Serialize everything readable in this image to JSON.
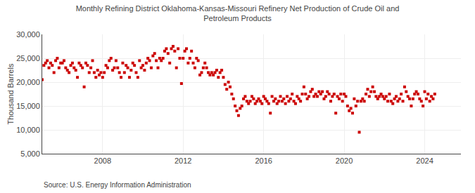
{
  "chart_data": {
    "type": "scatter",
    "title": "Monthly Refining District Oklahoma-Kansas-Missouri Refinery Net Production of Crude Oil and\nPetroleum Products",
    "ylabel": "Thousand Barrels",
    "annotations": [
      "Source: U.S. Energy Information Administration"
    ],
    "color": "#cc0000",
    "marker": "square",
    "grid": true,
    "xlim": [
      2005.0,
      2025.8
    ],
    "xticks": [
      2008,
      2012,
      2016,
      2020,
      2024
    ],
    "ylim": [
      5000,
      30000
    ],
    "yticks": [
      {
        "value": 5000,
        "label": "5,000"
      },
      {
        "value": 10000,
        "label": "10,000"
      },
      {
        "value": 15000,
        "label": "15,000"
      },
      {
        "value": 20000,
        "label": "20,000"
      },
      {
        "value": 25000,
        "label": "25,000"
      },
      {
        "value": 30000,
        "label": "30,000"
      }
    ],
    "x": [
      2005,
      2005.0833333333333,
      2005.1666666666667,
      2005.25,
      2005.3333333333333,
      2005.4166666666667,
      2005.5,
      2005.5833333333333,
      2005.6666666666667,
      2005.75,
      2005.8333333333333,
      2005.9166666666667,
      2006,
      2006.0833333333333,
      2006.1666666666667,
      2006.25,
      2006.3333333333333,
      2006.4166666666667,
      2006.5,
      2006.5833333333333,
      2006.6666666666667,
      2006.75,
      2006.8333333333333,
      2006.9166666666667,
      2007,
      2007.0833333333333,
      2007.1666666666667,
      2007.25,
      2007.3333333333333,
      2007.4166666666667,
      2007.5,
      2007.5833333333333,
      2007.6666666666667,
      2007.75,
      2007.8333333333333,
      2007.9166666666667,
      2008,
      2008.0833333333333,
      2008.1666666666667,
      2008.25,
      2008.3333333333333,
      2008.4166666666667,
      2008.5,
      2008.5833333333333,
      2008.6666666666667,
      2008.75,
      2008.8333333333333,
      2008.9166666666667,
      2009,
      2009.0833333333333,
      2009.1666666666667,
      2009.25,
      2009.3333333333333,
      2009.4166666666667,
      2009.5,
      2009.5833333333333,
      2009.6666666666667,
      2009.75,
      2009.8333333333333,
      2009.9166666666667,
      2010,
      2010.0833333333333,
      2010.1666666666667,
      2010.25,
      2010.3333333333333,
      2010.4166666666667,
      2010.5,
      2010.5833333333333,
      2010.6666666666667,
      2010.75,
      2010.8333333333333,
      2010.9166666666667,
      2011,
      2011.0833333333333,
      2011.1666666666667,
      2011.25,
      2011.3333333333333,
      2011.4166666666667,
      2011.5,
      2011.5833333333333,
      2011.6666666666667,
      2011.75,
      2011.8333333333333,
      2011.9166666666667,
      2012,
      2012.0833333333333,
      2012.1666666666667,
      2012.25,
      2012.3333333333333,
      2012.4166666666667,
      2012.5,
      2012.5833333333333,
      2012.6666666666667,
      2012.75,
      2012.8333333333333,
      2012.9166666666667,
      2013,
      2013.0833333333333,
      2013.1666666666667,
      2013.25,
      2013.3333333333333,
      2013.4166666666667,
      2013.5,
      2013.5833333333333,
      2013.6666666666667,
      2013.75,
      2013.8333333333333,
      2013.9166666666667,
      2014,
      2014.0833333333333,
      2014.1666666666667,
      2014.25,
      2014.3333333333333,
      2014.4166666666667,
      2014.5,
      2014.5833333333333,
      2014.6666666666667,
      2014.75,
      2014.8333333333333,
      2014.9166666666667,
      2015,
      2015.0833333333333,
      2015.1666666666667,
      2015.25,
      2015.3333333333333,
      2015.4166666666667,
      2015.5,
      2015.5833333333333,
      2015.6666666666667,
      2015.75,
      2015.8333333333333,
      2015.9166666666667,
      2016,
      2016.0833333333333,
      2016.1666666666667,
      2016.25,
      2016.3333333333333,
      2016.4166666666667,
      2016.5,
      2016.5833333333333,
      2016.6666666666667,
      2016.75,
      2016.8333333333333,
      2016.9166666666667,
      2017,
      2017.0833333333333,
      2017.1666666666667,
      2017.25,
      2017.3333333333333,
      2017.4166666666667,
      2017.5,
      2017.5833333333333,
      2017.6666666666667,
      2017.75,
      2017.8333333333333,
      2017.9166666666667,
      2018,
      2018.0833333333333,
      2018.1666666666667,
      2018.25,
      2018.3333333333333,
      2018.4166666666667,
      2018.5,
      2018.5833333333333,
      2018.6666666666667,
      2018.75,
      2018.8333333333333,
      2018.9166666666667,
      2019,
      2019.0833333333333,
      2019.1666666666667,
      2019.25,
      2019.3333333333333,
      2019.4166666666667,
      2019.5,
      2019.5833333333333,
      2019.6666666666667,
      2019.75,
      2019.8333333333333,
      2019.9166666666667,
      2020,
      2020.0833333333333,
      2020.1666666666667,
      2020.25,
      2020.3333333333333,
      2020.4166666666667,
      2020.5,
      2020.5833333333333,
      2020.6666666666667,
      2020.75,
      2020.8333333333333,
      2020.9166666666667,
      2021,
      2021.0833333333333,
      2021.1666666666667,
      2021.25,
      2021.3333333333333,
      2021.4166666666667,
      2021.5,
      2021.5833333333333,
      2021.6666666666667,
      2021.75,
      2021.8333333333333,
      2021.9166666666667,
      2022,
      2022.0833333333333,
      2022.1666666666667,
      2022.25,
      2022.3333333333333,
      2022.4166666666667,
      2022.5,
      2022.5833333333333,
      2022.6666666666667,
      2022.75,
      2022.8333333333333,
      2022.9166666666667,
      2023,
      2023.0833333333333,
      2023.1666666666667,
      2023.25,
      2023.3333333333333,
      2023.4166666666667,
      2023.5,
      2023.5833333333333,
      2023.6666666666667,
      2023.75,
      2023.8333333333333,
      2023.9166666666667,
      2024,
      2024.0833333333333,
      2024.1666666666667,
      2024.25,
      2024.3333333333333,
      2024.4166666666667,
      2024.5
    ],
    "values": [
      20500,
      23500,
      24000,
      24500,
      23000,
      24000,
      23500,
      22000,
      24500,
      25000,
      23000,
      24000,
      24000,
      24500,
      23000,
      22500,
      22000,
      23500,
      24000,
      23000,
      22500,
      21000,
      24000,
      23500,
      23000,
      19000,
      24000,
      23500,
      22000,
      23000,
      24500,
      22000,
      21000,
      22500,
      21500,
      22000,
      21000,
      22000,
      23500,
      23000,
      24500,
      25000,
      22500,
      23000,
      24500,
      23000,
      22000,
      21000,
      24000,
      22000,
      23500,
      23000,
      21000,
      22500,
      24000,
      23500,
      22000,
      21000,
      24500,
      23000,
      23500,
      22500,
      24000,
      25000,
      24500,
      23000,
      25500,
      26000,
      24500,
      23000,
      25000,
      24500,
      25000,
      26500,
      27000,
      26000,
      24000,
      27000,
      27500,
      26500,
      23000,
      27000,
      25000,
      19700,
      25000,
      26500,
      27000,
      24000,
      25000,
      26500,
      24000,
      23000,
      25000,
      24500,
      21500,
      22000,
      23000,
      24000,
      23000,
      22000,
      21500,
      22000,
      21500,
      22000,
      22500,
      21000,
      22000,
      22500,
      21000,
      19500,
      18500,
      20000,
      19000,
      17500,
      16500,
      15000,
      14000,
      13000,
      14500,
      15000,
      16500,
      17000,
      16000,
      15500,
      16000,
      17000,
      16500,
      15500,
      16000,
      16500,
      16000,
      15500,
      17000,
      16500,
      16000,
      15500,
      13500,
      17000,
      16000,
      16500,
      15500,
      16000,
      17000,
      16000,
      16500,
      15500,
      17000,
      16000,
      16500,
      17500,
      16000,
      15500,
      17000,
      16500,
      16000,
      17500,
      19000,
      17500,
      16500,
      17000,
      18000,
      18500,
      17000,
      17500,
      17000,
      18000,
      17500,
      18000,
      16500,
      17000,
      18000,
      17500,
      16000,
      17000,
      17500,
      13500,
      17000,
      16500,
      17500,
      16000,
      17500,
      17000,
      15000,
      14000,
      14500,
      13500,
      16500,
      15000,
      16000,
      9500,
      16000,
      16500,
      16000,
      17500,
      18500,
      17000,
      18000,
      19000,
      18000,
      17000,
      16500,
      17000,
      17500,
      17000,
      16500,
      17000,
      16000,
      17500,
      16000,
      15500,
      16500,
      17000,
      16000,
      16500,
      17500,
      16000,
      19000,
      18000,
      17000,
      16500,
      15000,
      16500,
      17500,
      18000,
      17500,
      16500,
      16000,
      15000,
      18000,
      16500,
      17500,
      16000,
      17000,
      16500,
      17500
    ]
  }
}
